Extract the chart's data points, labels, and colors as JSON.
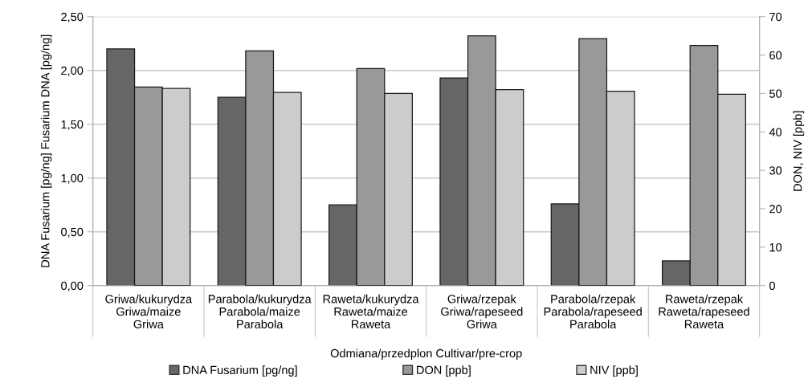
{
  "chart_data": {
    "type": "bar",
    "categories": [
      "Griwa/kukurydza\nGriwa/maize\nGriwa",
      "Parabola/kukurydza\nParabola/maize\nParabola",
      "Raweta/kukurydza\nRaweta/maize\nRaweta",
      "Griwa/rzepak\nGriwa/rapeseed\nGriwa",
      "Parabola/rzepak\nParabola/rapeseed\nParabola",
      "Raweta/rzepak\nRaweta/rapeseed\nRaweta"
    ],
    "series": [
      {
        "name": "DNA Fusarium [pg/ng]",
        "color": "#666666",
        "values": [
          2.2,
          1.75,
          0.75,
          1.93,
          0.76,
          0.23
        ]
      },
      {
        "name": "DON [ppb]",
        "color": "#999999",
        "axis": "y2",
        "values": [
          51.7,
          61.1,
          56.5,
          65.0,
          64.3,
          62.5
        ]
      },
      {
        "name": "NIV [ppb]",
        "color": "#cccccc",
        "axis": "y2",
        "values": [
          51.3,
          50.3,
          50.0,
          51.0,
          50.6,
          49.8
        ]
      }
    ],
    "xlabel": "Odmiana/przedplon Cultivar/pre-crop",
    "ylabel": "DNA Fusarium [pg/ng] Fusarium DNA [pg/ng]",
    "y2label": "DON, NIV [ppb]",
    "ylim": [
      0,
      2.5
    ],
    "yticks": [
      {
        "value": 0,
        "label": "0,00"
      },
      {
        "value": 0.5,
        "label": "0,50"
      },
      {
        "value": 1,
        "label": "1,00"
      },
      {
        "value": 1.5,
        "label": "1,50"
      },
      {
        "value": 2,
        "label": "2,00"
      },
      {
        "value": 2.5,
        "label": "2,50"
      }
    ],
    "y2lim": [
      0,
      70
    ],
    "y2ticks": [
      0,
      10,
      20,
      30,
      40,
      50,
      60,
      70
    ],
    "grid": "y",
    "legend": "bottom"
  }
}
